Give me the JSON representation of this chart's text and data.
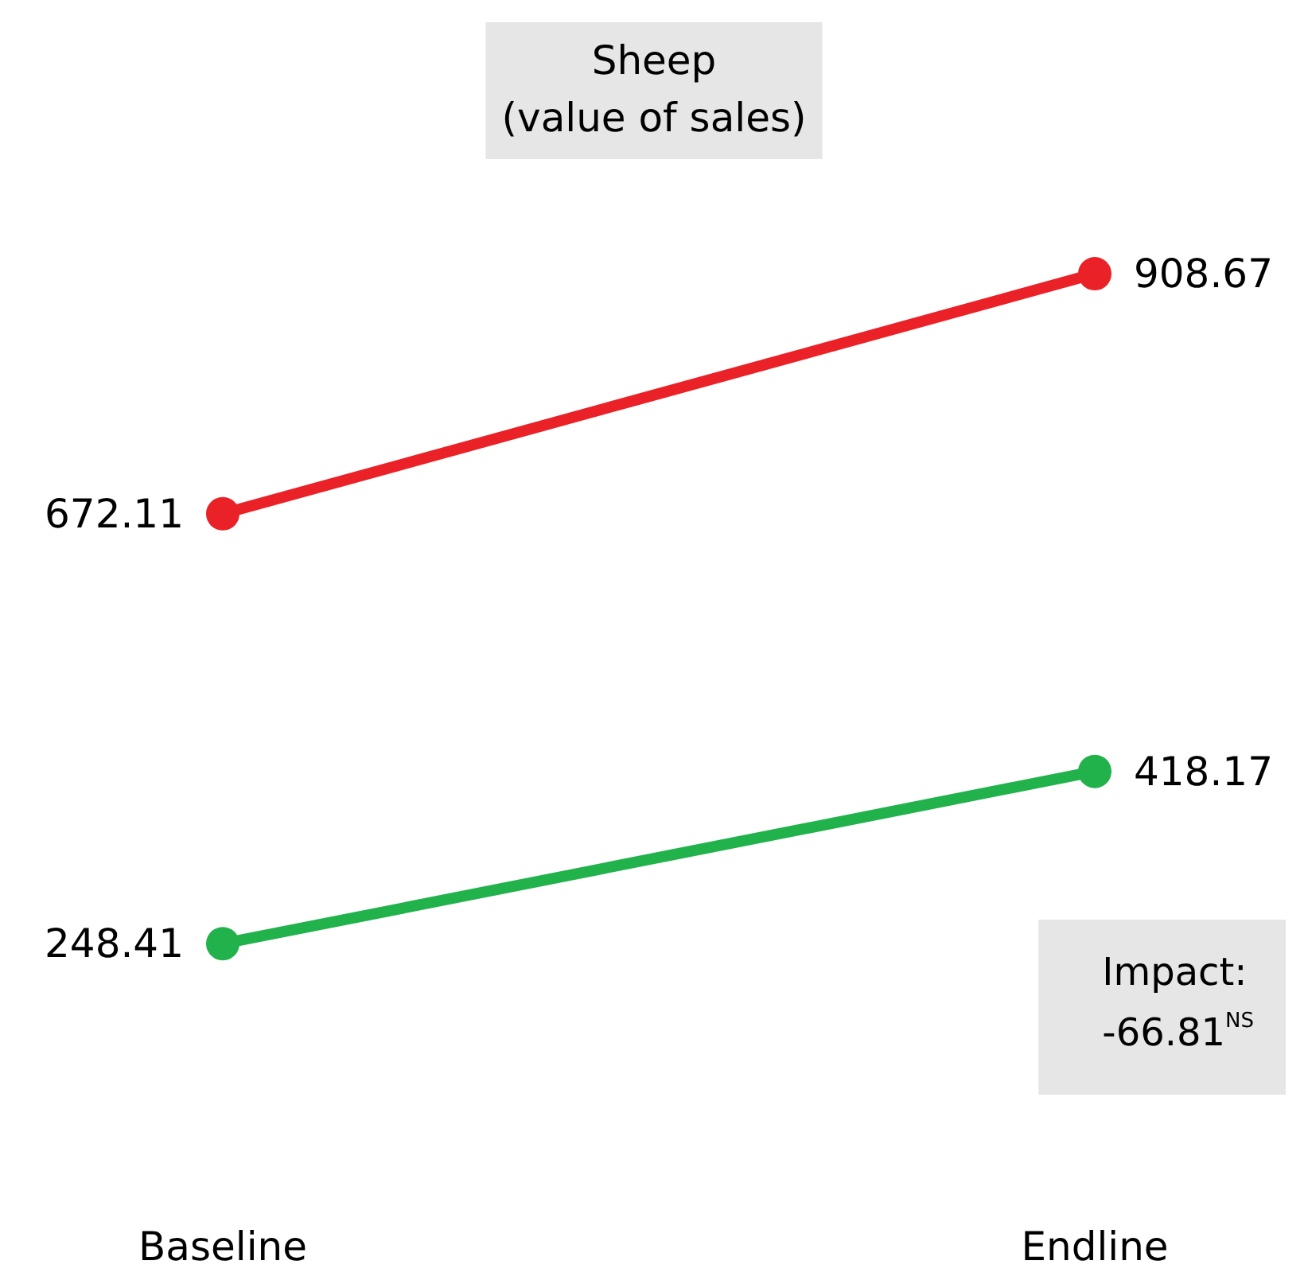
{
  "chart_data": {
    "type": "line",
    "title": "Sheep\n(value of sales)",
    "categories": [
      "Baseline",
      "Endline"
    ],
    "series": [
      {
        "color": "#ea2227",
        "values": [
          672.11,
          908.67
        ]
      },
      {
        "color": "#22b24c",
        "values": [
          248.41,
          418.17
        ]
      }
    ],
    "data_labels": true,
    "marker": "circle",
    "line_style": "solid",
    "annotations": [
      "Impact:\n-66.81$^{NS}$"
    ]
  }
}
